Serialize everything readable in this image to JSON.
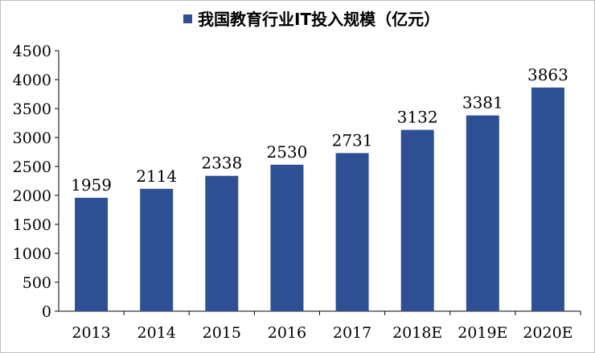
{
  "chart_data": {
    "type": "bar",
    "categories": [
      "2013",
      "2014",
      "2015",
      "2016",
      "2017",
      "2018E",
      "2019E",
      "2020E"
    ],
    "series": [
      {
        "name": "我国教育行业IT投入规模（亿元）",
        "values": [
          1959,
          2114,
          2338,
          2530,
          2731,
          3132,
          3381,
          3863
        ],
        "color": "#2f4f95"
      }
    ],
    "yticks": [
      "0",
      "500",
      "1000",
      "1500",
      "2000",
      "2500",
      "3000",
      "3500",
      "4000",
      "4500"
    ],
    "ylim": [
      0,
      4500
    ],
    "grid": false,
    "legend_position": "top-center",
    "data_labels": [
      "1959",
      "2114",
      "2338",
      "2530",
      "2731",
      "3132",
      "3381",
      "3863"
    ]
  }
}
